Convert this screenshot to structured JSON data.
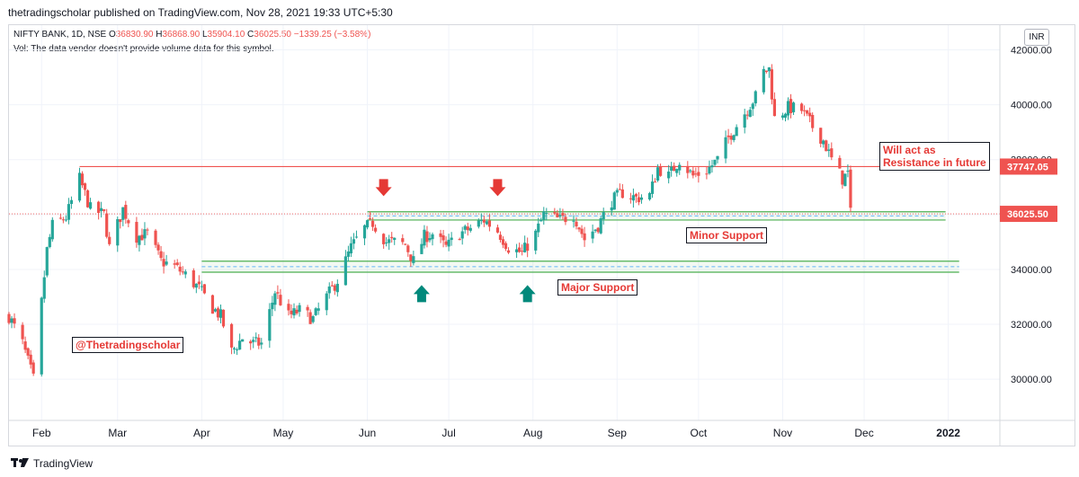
{
  "header": {
    "published": "thetradingscholar published on TradingView.com, Nov 28, 2021 19:33 UTC+5:30"
  },
  "legend": {
    "symbol": "NIFTY BANK, 1D, NSE",
    "o_label": "O",
    "o_value": "36830.90",
    "h_label": "H",
    "h_value": "36868.90",
    "l_label": "L",
    "l_value": "35904.10",
    "c_label": "C",
    "c_value": "36025.50",
    "change": "−1339.25 (−3.58%)",
    "vol_note": "Vol: The data vendor doesn't provide volume data for this symbol."
  },
  "currency": "INR",
  "footer": {
    "brand": "TradingView"
  },
  "colors": {
    "up": "#26a69a",
    "down": "#ef5350",
    "resistance": "#ef5350",
    "support": "#4caf50",
    "arrow_down": "#e53935",
    "arrow_up": "#00897b"
  },
  "chart_data": {
    "type": "candlestick",
    "symbol": "NIFTY BANK",
    "interval": "1D",
    "exchange": "NSE",
    "ylim": [
      28500,
      42900
    ],
    "y_ticks": [
      "42000.00",
      "40000.00",
      "38000.00",
      "36000.00",
      "34000.00",
      "32000.00",
      "30000.00"
    ],
    "y_tick_values": [
      42000,
      40000,
      38000,
      36000,
      34000,
      32000,
      30000
    ],
    "x_ticks": [
      "Feb",
      "Mar",
      "Apr",
      "May",
      "Jun",
      "Jul",
      "Aug",
      "Sep",
      "Oct",
      "Nov",
      "Dec",
      "2022"
    ],
    "x_tick_dates": [
      "2021-02-01",
      "2021-03-01",
      "2021-04-01",
      "2021-05-01",
      "2021-06-01",
      "2021-07-01",
      "2021-08-01",
      "2021-09-01",
      "2021-10-01",
      "2021-11-01",
      "2021-12-01",
      "2022-01-01"
    ],
    "date_range": [
      "2021-01-20",
      "2022-01-20"
    ],
    "price_labels": [
      {
        "value": 37747.05,
        "text": "37747.05"
      },
      {
        "value": 36025.5,
        "text": "36025.50"
      }
    ],
    "close_points": [
      {
        "date": "2021-01-20",
        "close": 32300
      },
      {
        "date": "2021-01-25",
        "close": 31300
      },
      {
        "date": "2021-01-29",
        "close": 30000
      },
      {
        "date": "2021-02-01",
        "close": 32800
      },
      {
        "date": "2021-02-03",
        "close": 34700
      },
      {
        "date": "2021-02-05",
        "close": 35600
      },
      {
        "date": "2021-02-10",
        "close": 35900
      },
      {
        "date": "2021-02-15",
        "close": 37300
      },
      {
        "date": "2021-02-19",
        "close": 36200
      },
      {
        "date": "2021-02-24",
        "close": 36000
      },
      {
        "date": "2021-02-26",
        "close": 34800
      },
      {
        "date": "2021-03-03",
        "close": 36200
      },
      {
        "date": "2021-03-08",
        "close": 35200
      },
      {
        "date": "2021-03-12",
        "close": 35300
      },
      {
        "date": "2021-03-17",
        "close": 34300
      },
      {
        "date": "2021-03-22",
        "close": 34100
      },
      {
        "date": "2021-03-26",
        "close": 33800
      },
      {
        "date": "2021-03-31",
        "close": 33300
      },
      {
        "date": "2021-04-05",
        "close": 32600
      },
      {
        "date": "2021-04-08",
        "close": 32300
      },
      {
        "date": "2021-04-12",
        "close": 31000
      },
      {
        "date": "2021-04-16",
        "close": 31500
      },
      {
        "date": "2021-04-20",
        "close": 31300
      },
      {
        "date": "2021-04-23",
        "close": 31300
      },
      {
        "date": "2021-04-28",
        "close": 33200
      },
      {
        "date": "2021-05-03",
        "close": 32300
      },
      {
        "date": "2021-05-07",
        "close": 32500
      },
      {
        "date": "2021-05-12",
        "close": 32200
      },
      {
        "date": "2021-05-17",
        "close": 33000
      },
      {
        "date": "2021-05-21",
        "close": 33600
      },
      {
        "date": "2021-05-26",
        "close": 34800
      },
      {
        "date": "2021-05-31",
        "close": 35500
      },
      {
        "date": "2021-06-03",
        "close": 35700
      },
      {
        "date": "2021-06-08",
        "close": 35000
      },
      {
        "date": "2021-06-11",
        "close": 35000
      },
      {
        "date": "2021-06-15",
        "close": 34900
      },
      {
        "date": "2021-06-18",
        "close": 34300
      },
      {
        "date": "2021-06-22",
        "close": 35200
      },
      {
        "date": "2021-06-25",
        "close": 35300
      },
      {
        "date": "2021-06-30",
        "close": 34800
      },
      {
        "date": "2021-07-05",
        "close": 35300
      },
      {
        "date": "2021-07-09",
        "close": 35500
      },
      {
        "date": "2021-07-14",
        "close": 35800
      },
      {
        "date": "2021-07-19",
        "close": 35400
      },
      {
        "date": "2021-07-23",
        "close": 34800
      },
      {
        "date": "2021-07-28",
        "close": 34600
      },
      {
        "date": "2021-08-02",
        "close": 35300
      },
      {
        "date": "2021-08-05",
        "close": 36000
      },
      {
        "date": "2021-08-11",
        "close": 35800
      },
      {
        "date": "2021-08-16",
        "close": 36000
      },
      {
        "date": "2021-08-20",
        "close": 35100
      },
      {
        "date": "2021-08-25",
        "close": 35600
      },
      {
        "date": "2021-08-30",
        "close": 36500
      },
      {
        "date": "2021-09-03",
        "close": 36800
      },
      {
        "date": "2021-09-08",
        "close": 36600
      },
      {
        "date": "2021-09-13",
        "close": 36700
      },
      {
        "date": "2021-09-16",
        "close": 37700
      },
      {
        "date": "2021-09-20",
        "close": 37400
      },
      {
        "date": "2021-09-24",
        "close": 38000
      },
      {
        "date": "2021-09-29",
        "close": 37400
      },
      {
        "date": "2021-10-04",
        "close": 37600
      },
      {
        "date": "2021-10-08",
        "close": 38000
      },
      {
        "date": "2021-10-12",
        "close": 38800
      },
      {
        "date": "2021-10-18",
        "close": 39700
      },
      {
        "date": "2021-10-22",
        "close": 40300
      },
      {
        "date": "2021-10-25",
        "close": 41200
      },
      {
        "date": "2021-10-27",
        "close": 41300
      },
      {
        "date": "2021-10-29",
        "close": 39500
      },
      {
        "date": "2021-11-03",
        "close": 39900
      },
      {
        "date": "2021-11-08",
        "close": 39800
      },
      {
        "date": "2021-11-12",
        "close": 39200
      },
      {
        "date": "2021-11-16",
        "close": 38700
      },
      {
        "date": "2021-11-19",
        "close": 38000
      },
      {
        "date": "2021-11-23",
        "close": 37300
      },
      {
        "date": "2021-11-25",
        "close": 37500
      },
      {
        "date": "2021-11-26",
        "close": 36025.5
      }
    ],
    "support_resistance": [
      {
        "label": "Resistance",
        "level": 37747.05,
        "start": "2021-02-15",
        "end": "2021-12-31"
      },
      {
        "label": "Minor Support",
        "band": [
          35800,
          36100
        ],
        "start": "2021-06-01",
        "end": "2021-12-31"
      },
      {
        "label": "Major Support",
        "band": [
          33900,
          34300
        ],
        "start": "2021-04-01",
        "end": "2022-01-05"
      }
    ],
    "markers": [
      {
        "type": "arrow-down",
        "date": "2021-06-07",
        "value": 36900
      },
      {
        "type": "arrow-down",
        "date": "2021-07-19",
        "value": 36900
      },
      {
        "type": "arrow-up",
        "date": "2021-06-21",
        "value": 33200
      },
      {
        "type": "arrow-up",
        "date": "2021-07-30",
        "value": 33200
      }
    ],
    "annotations": [
      {
        "text": "Will act as\nResistance in future",
        "line1": "Will act as",
        "line2": "Resistance in future"
      },
      {
        "text": "Minor Support"
      },
      {
        "text": "Major Support"
      },
      {
        "text": "@Thetradingscholar"
      }
    ]
  }
}
